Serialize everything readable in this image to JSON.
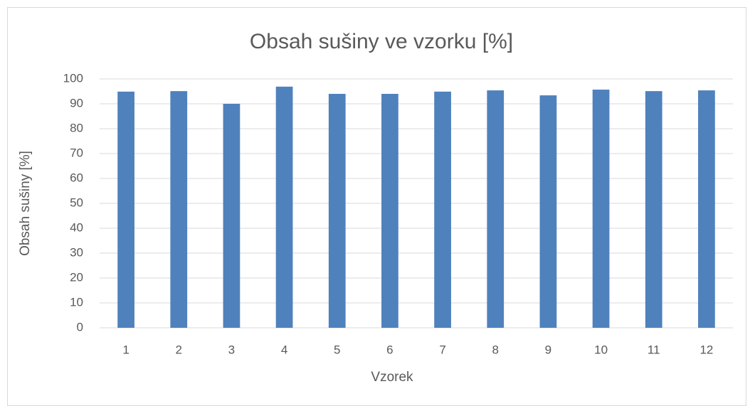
{
  "chart_data": {
    "type": "bar",
    "title": "Obsah sušiny ve vzorku [%]",
    "x_label": "Vzorek",
    "y_label": "Obsah sušiny [%]",
    "categories": [
      "1",
      "2",
      "3",
      "4",
      "5",
      "6",
      "7",
      "8",
      "9",
      "10",
      "11",
      "12"
    ],
    "values": [
      94.9,
      95.1,
      90,
      96.9,
      94,
      94,
      94.9,
      95.4,
      93.4,
      95.7,
      95.1,
      95.4
    ],
    "color": "#4f81bd",
    "ylim": [
      0,
      100
    ],
    "yticks": [
      0,
      10,
      20,
      30,
      40,
      50,
      60,
      70,
      80,
      90,
      100
    ],
    "grid": true
  }
}
